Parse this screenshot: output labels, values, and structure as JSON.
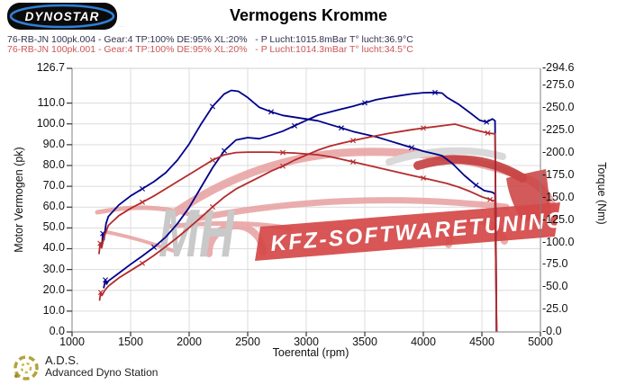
{
  "header": {
    "logo_text": "DYNOSTAR",
    "logo_fineprint": "...",
    "title": "Vermogens Kromme"
  },
  "legend": [
    {
      "text": "76-RB-JN 100pk.004 - Gear:4 TP:100% DE:95% XL:20%   - P Lucht:1015.8mBar T° lucht:36.9°C",
      "color": "#32324f"
    },
    {
      "text": "76-RB-JN 100pk.001 - Gear:4 TP:100% DE:95% XL:20%   - P Lucht:1014.3mBar T° lucht:34.5°C",
      "color": "#cc5555"
    }
  ],
  "watermark": {
    "mh": "MH",
    "banner": "KFZ-SOFTWARETUNING"
  },
  "footer": {
    "ads": "A.D.S.",
    "ads_sub": "Advanced Dyno Station"
  },
  "chart_data": {
    "type": "line",
    "title": "Vermogens Kromme",
    "xlabel": "Toerental (rpm)",
    "ylabel_left": "Motor Vermogen (pk)",
    "ylabel_right": "Torque (Nm)",
    "x_range": [
      1000,
      5000
    ],
    "y_left_range": [
      0,
      126.7
    ],
    "y_right_range": [
      0,
      294.6
    ],
    "grid": true,
    "legend_position": "top-left",
    "x_ticks": [
      {
        "v": 1000,
        "t": "1000"
      },
      {
        "v": 1500,
        "t": "1500"
      },
      {
        "v": 2000,
        "t": "2000"
      },
      {
        "v": 2500,
        "t": "2500"
      },
      {
        "v": 3000,
        "t": "3000"
      },
      {
        "v": 3500,
        "t": "3500"
      },
      {
        "v": 4000,
        "t": "4000"
      },
      {
        "v": 4500,
        "t": "4500"
      },
      {
        "v": 5000,
        "t": "5000"
      }
    ],
    "y_left_ticks": [
      {
        "v": 126.7,
        "t": "126.7"
      },
      {
        "v": 110,
        "t": "110.0"
      },
      {
        "v": 100,
        "t": "100.0"
      },
      {
        "v": 90,
        "t": "90.0"
      },
      {
        "v": 80,
        "t": "80.0"
      },
      {
        "v": 70,
        "t": "70.0"
      },
      {
        "v": 60,
        "t": "60.0"
      },
      {
        "v": 50,
        "t": "50.0"
      },
      {
        "v": 40,
        "t": "40.0"
      },
      {
        "v": 30,
        "t": "30.0"
      },
      {
        "v": 20,
        "t": "20.0"
      },
      {
        "v": 10,
        "t": "10.0"
      },
      {
        "v": 0,
        "t": "0.0"
      }
    ],
    "y_right_ticks": [
      {
        "v": 294.6,
        "t": "-294.6"
      },
      {
        "v": 275,
        "t": "-275.0"
      },
      {
        "v": 250,
        "t": "-250.0"
      },
      {
        "v": 225,
        "t": "-225.0"
      },
      {
        "v": 200,
        "t": "-200.0"
      },
      {
        "v": 175,
        "t": "-175.0"
      },
      {
        "v": 150,
        "t": "-150.0"
      },
      {
        "v": 125,
        "t": "-125.0"
      },
      {
        "v": 100,
        "t": "-100.0"
      },
      {
        "v": 75,
        "t": "-75.0"
      },
      {
        "v": 50,
        "t": "-50.0"
      },
      {
        "v": 25,
        "t": "-25.0"
      },
      {
        "v": 0,
        "t": "-0.0"
      }
    ],
    "series": [
      {
        "name": "power-run-004",
        "axis": "left",
        "color": "#00008b",
        "unit": "pk",
        "points": [
          [
            1270,
            21
          ],
          [
            1285,
            25
          ],
          [
            1295,
            23
          ],
          [
            1310,
            24.5
          ],
          [
            1400,
            28.3
          ],
          [
            1500,
            32.5
          ],
          [
            1600,
            36.5
          ],
          [
            1700,
            40.7
          ],
          [
            1800,
            45.6
          ],
          [
            1900,
            52
          ],
          [
            2000,
            59.8
          ],
          [
            2100,
            69.4
          ],
          [
            2200,
            78.9
          ],
          [
            2300,
            87.1
          ],
          [
            2400,
            92.3
          ],
          [
            2500,
            93.4
          ],
          [
            2600,
            92.9
          ],
          [
            2700,
            94.6
          ],
          [
            2800,
            96.5
          ],
          [
            2900,
            99.1
          ],
          [
            3000,
            101.7
          ],
          [
            3100,
            104.2
          ],
          [
            3200,
            105.7
          ],
          [
            3300,
            107.1
          ],
          [
            3400,
            108.5
          ],
          [
            3500,
            110.1
          ],
          [
            3600,
            111.7
          ],
          [
            3700,
            112.7
          ],
          [
            3800,
            113.6
          ],
          [
            3900,
            114.4
          ],
          [
            4000,
            115
          ],
          [
            4100,
            115.1
          ],
          [
            4160,
            114.8
          ],
          [
            4200,
            112.8
          ],
          [
            4300,
            109.5
          ],
          [
            4400,
            105.3
          ],
          [
            4480,
            101.8
          ],
          [
            4540,
            100.9
          ],
          [
            4590,
            102.4
          ],
          [
            4612,
            101.5
          ],
          [
            4625,
            0
          ]
        ]
      },
      {
        "name": "torque-run-004",
        "axis": "right",
        "color": "#00008b",
        "unit": "Nm",
        "points": [
          [
            1255,
            96
          ],
          [
            1262,
            110
          ],
          [
            1272,
            103
          ],
          [
            1290,
            121
          ],
          [
            1310,
            129
          ],
          [
            1400,
            142
          ],
          [
            1500,
            152
          ],
          [
            1600,
            160
          ],
          [
            1700,
            168
          ],
          [
            1800,
            178
          ],
          [
            1900,
            192
          ],
          [
            2000,
            210
          ],
          [
            2100,
            232
          ],
          [
            2200,
            252
          ],
          [
            2300,
            266
          ],
          [
            2360,
            270
          ],
          [
            2420,
            269
          ],
          [
            2500,
            262
          ],
          [
            2600,
            251
          ],
          [
            2700,
            246
          ],
          [
            2800,
            242
          ],
          [
            2900,
            240
          ],
          [
            3000,
            238
          ],
          [
            3100,
            236
          ],
          [
            3200,
            232
          ],
          [
            3300,
            228
          ],
          [
            3400,
            224
          ],
          [
            3500,
            221
          ],
          [
            3600,
            218
          ],
          [
            3700,
            214
          ],
          [
            3800,
            210
          ],
          [
            3900,
            206
          ],
          [
            4000,
            202
          ],
          [
            4100,
            199
          ],
          [
            4160,
            197
          ],
          [
            4250,
            188
          ],
          [
            4350,
            175
          ],
          [
            4450,
            164
          ],
          [
            4520,
            158
          ],
          [
            4590,
            156
          ],
          [
            4612,
            154
          ],
          [
            4625,
            0
          ]
        ]
      },
      {
        "name": "power-run-001",
        "axis": "left",
        "color": "#b52b2b",
        "unit": "pk",
        "points": [
          [
            1235,
            15
          ],
          [
            1245,
            19
          ],
          [
            1255,
            17.5
          ],
          [
            1280,
            20
          ],
          [
            1310,
            22
          ],
          [
            1400,
            26
          ],
          [
            1500,
            29.5
          ],
          [
            1600,
            33
          ],
          [
            1700,
            36.8
          ],
          [
            1800,
            41
          ],
          [
            1900,
            45.4
          ],
          [
            2000,
            50.1
          ],
          [
            2100,
            55
          ],
          [
            2200,
            60.1
          ],
          [
            2300,
            64.8
          ],
          [
            2400,
            68.7
          ],
          [
            2500,
            71.6
          ],
          [
            2600,
            74.4
          ],
          [
            2700,
            77.3
          ],
          [
            2800,
            79.7
          ],
          [
            2900,
            82.6
          ],
          [
            3000,
            85
          ],
          [
            3100,
            87.4
          ],
          [
            3200,
            89.3
          ],
          [
            3300,
            90.7
          ],
          [
            3400,
            92
          ],
          [
            3500,
            93.2
          ],
          [
            3600,
            94.3
          ],
          [
            3700,
            95.4
          ],
          [
            3800,
            96.3
          ],
          [
            3900,
            97.2
          ],
          [
            4000,
            98
          ],
          [
            4100,
            98.7
          ],
          [
            4200,
            99.4
          ],
          [
            4270,
            99.9
          ],
          [
            4350,
            98.6
          ],
          [
            4450,
            97
          ],
          [
            4550,
            95.6
          ],
          [
            4612,
            95.2
          ],
          [
            4625,
            0
          ]
        ]
      },
      {
        "name": "torque-run-001",
        "axis": "right",
        "color": "#b52b2b",
        "unit": "Nm",
        "points": [
          [
            1230,
            87
          ],
          [
            1240,
            99
          ],
          [
            1252,
            94
          ],
          [
            1275,
            107
          ],
          [
            1310,
            119
          ],
          [
            1400,
            130
          ],
          [
            1500,
            138
          ],
          [
            1600,
            145
          ],
          [
            1700,
            152
          ],
          [
            1800,
            160
          ],
          [
            1900,
            168
          ],
          [
            2000,
            176
          ],
          [
            2100,
            184
          ],
          [
            2200,
            192
          ],
          [
            2300,
            198
          ],
          [
            2400,
            200.5
          ],
          [
            2500,
            201
          ],
          [
            2600,
            201
          ],
          [
            2700,
            201
          ],
          [
            2800,
            200.5
          ],
          [
            2900,
            200
          ],
          [
            3000,
            199
          ],
          [
            3100,
            198
          ],
          [
            3200,
            196
          ],
          [
            3300,
            193
          ],
          [
            3400,
            190
          ],
          [
            3500,
            187
          ],
          [
            3600,
            184
          ],
          [
            3700,
            181
          ],
          [
            3800,
            178
          ],
          [
            3900,
            175
          ],
          [
            4000,
            172
          ],
          [
            4100,
            169
          ],
          [
            4200,
            166
          ],
          [
            4300,
            162
          ],
          [
            4400,
            157
          ],
          [
            4500,
            151
          ],
          [
            4570,
            148
          ],
          [
            4612,
            146
          ],
          [
            4625,
            0
          ]
        ]
      }
    ]
  }
}
